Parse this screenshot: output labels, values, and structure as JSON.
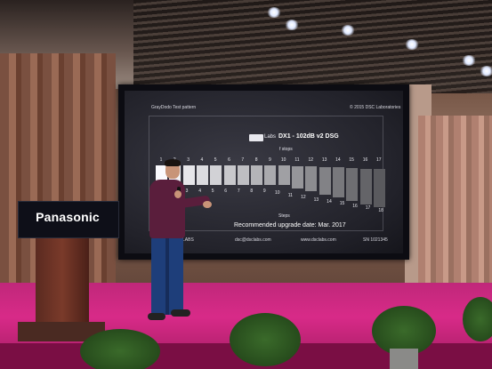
{
  "screen": {
    "pattern_title": "GrayDodo Test pattern",
    "copyright": "© 2015 DSC Laboratories",
    "logo_text": "Labs",
    "model": "DX1 - 102dB v2 DSG",
    "fstops_label": "f stops",
    "steps_label": "Steps",
    "recommended": "Recommended upgrade date: Mar. 2017",
    "footer_brand": "LABS",
    "footer_email": "dsc@dsclabs.com",
    "footer_web": "www.dsclabs.com",
    "footer_sn": "SN 1021345",
    "stop_numbers": [
      "1",
      "2",
      "3",
      "4",
      "5",
      "6",
      "7",
      "8",
      "9",
      "10",
      "11",
      "12",
      "13",
      "14",
      "15",
      "16",
      "17"
    ],
    "step_numbers": [
      "1",
      "2",
      "3",
      "4",
      "5",
      "6",
      "7",
      "8",
      "9",
      "10",
      "11",
      "12",
      "13",
      "14",
      "15",
      "16",
      "17",
      "18"
    ]
  },
  "podium": {
    "brand": "Panasonic"
  },
  "colors": {
    "stage": "#d82a88",
    "podium": "#0e0f18",
    "sweater": "#5a1e3c",
    "jeans": "#1e3e7a"
  }
}
